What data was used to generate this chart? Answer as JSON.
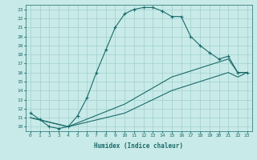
{
  "xlabel": "Humidex (Indice chaleur)",
  "ylabel": "",
  "xlim": [
    -0.5,
    23.5
  ],
  "ylim": [
    9.5,
    23.5
  ],
  "xticks": [
    0,
    1,
    2,
    3,
    4,
    5,
    6,
    7,
    8,
    9,
    10,
    11,
    12,
    13,
    14,
    15,
    16,
    17,
    18,
    19,
    20,
    21,
    22,
    23
  ],
  "yticks": [
    10,
    11,
    12,
    13,
    14,
    15,
    16,
    17,
    18,
    19,
    20,
    21,
    22,
    23
  ],
  "bg_color": "#c8eae8",
  "line_color": "#1a6b6b",
  "grid_color": "#a0d0cc",
  "line1_x": [
    0,
    1,
    2,
    3,
    4,
    5,
    6,
    7,
    8,
    9,
    10,
    11,
    12,
    13,
    14,
    15,
    16,
    17,
    18,
    19,
    20,
    21,
    22,
    23
  ],
  "line1_y": [
    11.5,
    10.8,
    10.0,
    9.8,
    10.0,
    11.2,
    13.2,
    16.0,
    18.5,
    21.0,
    22.5,
    23.0,
    23.2,
    23.2,
    22.8,
    22.2,
    22.2,
    20.0,
    19.0,
    18.2,
    17.5,
    17.8,
    16.0,
    16.0
  ],
  "line2_x": [
    0,
    4,
    10,
    15,
    21,
    22,
    23
  ],
  "line2_y": [
    11.0,
    10.0,
    12.5,
    15.5,
    17.5,
    16.0,
    16.0
  ],
  "line3_x": [
    0,
    4,
    10,
    15,
    21,
    22,
    23
  ],
  "line3_y": [
    11.0,
    10.0,
    11.5,
    14.0,
    16.0,
    15.5,
    16.0
  ]
}
